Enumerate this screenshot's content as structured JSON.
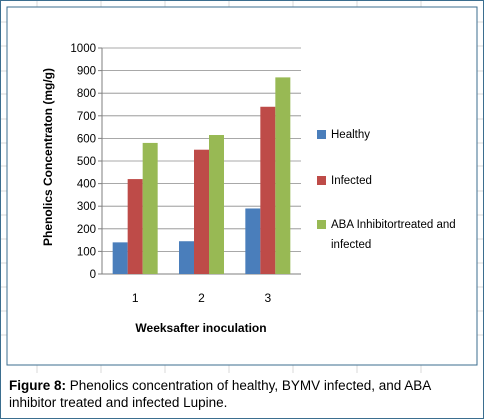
{
  "figure_caption": {
    "label": "Figure 8:",
    "text": "Phenolics concentration of healthy, BYMV infected, and ABA inhibitor treated and infected Lupine."
  },
  "chart_data": {
    "type": "bar",
    "title": "",
    "xlabel": "Weeksafter inoculation",
    "ylabel": "Phenolics Concentraton (mg/g)",
    "categories": [
      "1",
      "2",
      "3"
    ],
    "ylim": [
      0,
      1000
    ],
    "yticks": [
      0,
      100,
      200,
      300,
      400,
      500,
      600,
      700,
      800,
      900,
      1000
    ],
    "grid": true,
    "legend_position": "right",
    "series": [
      {
        "name": "Healthy",
        "color": "#4a7ebb",
        "values": [
          140,
          145,
          290
        ]
      },
      {
        "name": "Infected",
        "color": "#be4b48",
        "values": [
          420,
          550,
          740
        ]
      },
      {
        "name": "ABA Inhibitortreated and infected",
        "color": "#98b954",
        "values": [
          580,
          615,
          870
        ]
      }
    ],
    "legend_lines": [
      [
        "Healthy"
      ],
      [
        "Infected"
      ],
      [
        "ABA Inhibitortreated and",
        "infected"
      ]
    ]
  }
}
